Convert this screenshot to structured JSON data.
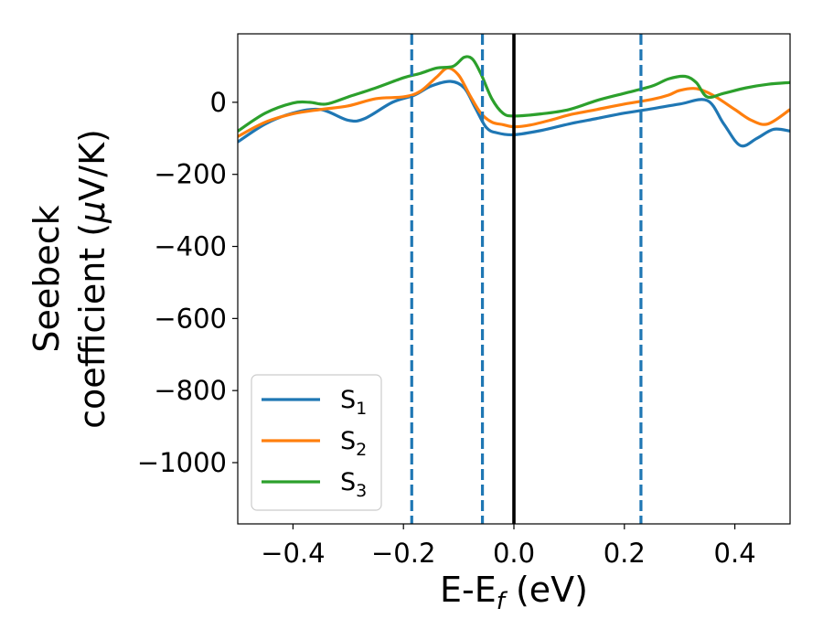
{
  "chart_data": {
    "type": "line",
    "xlabel": {
      "main": "E-E",
      "sub": "f",
      "rest": " (eV)"
    },
    "ylabel_line1": "Seebeck",
    "ylabel_line2": {
      "main": "coefficient  (",
      "greek": "μ",
      "rest": "V/K)"
    },
    "xlim": [
      -0.5,
      0.5
    ],
    "ylim": [
      -1170,
      190
    ],
    "xticks": [
      -0.4,
      -0.2,
      0.0,
      0.2,
      0.4
    ],
    "xtick_labels": [
      "−0.4",
      "−0.2",
      "0.0",
      "0.2",
      "0.4"
    ],
    "yticks": [
      0,
      -200,
      -400,
      -600,
      -800,
      -1000
    ],
    "ytick_labels": [
      "0",
      "−200",
      "−400",
      "−600",
      "−800",
      "−1000"
    ],
    "grid": false,
    "legend_position": "lower-left",
    "vlines": [
      {
        "x": 0.0,
        "style": "solid",
        "color": "#000000"
      },
      {
        "x": -0.185,
        "style": "dashed",
        "color": "#1f77b4"
      },
      {
        "x": -0.057,
        "style": "dashed",
        "color": "#1f77b4"
      },
      {
        "x": 0.23,
        "style": "dashed",
        "color": "#1f77b4"
      }
    ],
    "series": [
      {
        "name": "S",
        "sub": "1",
        "color": "#1f77b4",
        "x": [
          -0.5,
          -0.45,
          -0.4,
          -0.35,
          -0.3,
          -0.27,
          -0.22,
          -0.18,
          -0.15,
          -0.115,
          -0.09,
          -0.07,
          -0.05,
          -0.03,
          0.0,
          0.05,
          0.1,
          0.15,
          0.2,
          0.25,
          0.3,
          0.35,
          0.38,
          0.41,
          0.44,
          0.47,
          0.5
        ],
        "y": [
          -110,
          -60,
          -30,
          -20,
          -50,
          -45,
          0,
          20,
          45,
          58,
          40,
          -15,
          -70,
          -85,
          -90,
          -78,
          -60,
          -45,
          -30,
          -18,
          -5,
          5,
          -60,
          -120,
          -100,
          -75,
          -80
        ]
      },
      {
        "name": "S",
        "sub": "2",
        "color": "#ff7f0e",
        "x": [
          -0.5,
          -0.45,
          -0.4,
          -0.35,
          -0.3,
          -0.25,
          -0.2,
          -0.17,
          -0.14,
          -0.12,
          -0.1,
          -0.08,
          -0.06,
          -0.04,
          -0.02,
          0.0,
          0.03,
          0.07,
          0.1,
          0.15,
          0.2,
          0.25,
          0.28,
          0.3,
          0.33,
          0.36,
          0.4,
          0.43,
          0.46,
          0.5
        ],
        "y": [
          -95,
          -55,
          -32,
          -20,
          -10,
          10,
          15,
          30,
          70,
          95,
          75,
          20,
          -30,
          -55,
          -62,
          -68,
          -63,
          -48,
          -35,
          -20,
          -5,
          8,
          20,
          33,
          38,
          20,
          -20,
          -50,
          -60,
          -20
        ]
      },
      {
        "name": "S",
        "sub": "3",
        "color": "#2ca02c",
        "x": [
          -0.5,
          -0.45,
          -0.4,
          -0.37,
          -0.34,
          -0.3,
          -0.25,
          -0.2,
          -0.17,
          -0.14,
          -0.11,
          -0.09,
          -0.075,
          -0.06,
          -0.04,
          -0.02,
          0.0,
          0.05,
          0.1,
          0.15,
          0.2,
          0.25,
          0.28,
          0.31,
          0.33,
          0.35,
          0.38,
          0.42,
          0.46,
          0.5
        ],
        "y": [
          -80,
          -30,
          -2,
          0,
          -5,
          15,
          40,
          68,
          80,
          95,
          100,
          125,
          120,
          80,
          10,
          -30,
          -38,
          -32,
          -20,
          5,
          25,
          45,
          65,
          72,
          55,
          15,
          25,
          40,
          50,
          55
        ]
      }
    ]
  }
}
